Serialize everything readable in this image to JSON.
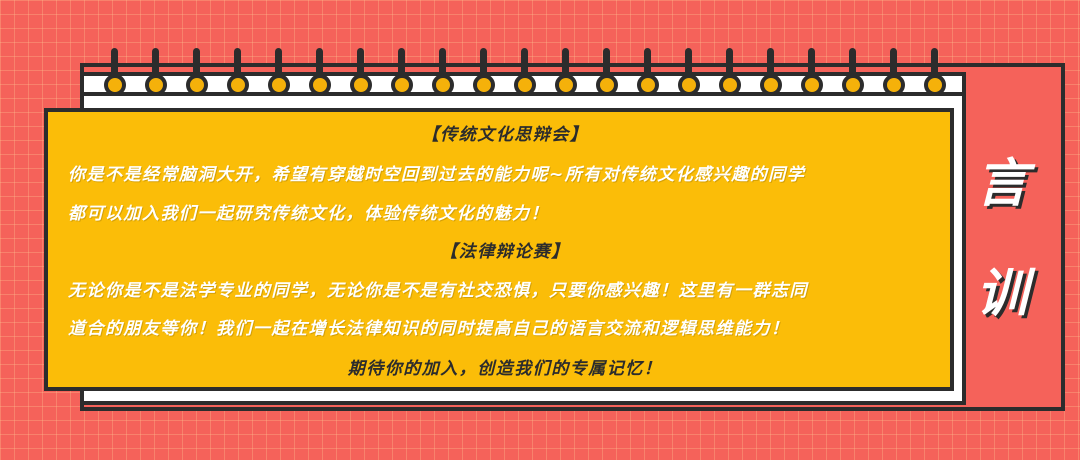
{
  "theme": {
    "background": "#f5625a",
    "accent": "#fbbd08",
    "ink": "#2c2c2c",
    "paper": "#ffffff"
  },
  "binder": {
    "ring_count": 21,
    "icon": "spiral-ring-icon"
  },
  "sections": [
    {
      "heading": "【传统文化思辩会】",
      "lines": [
        "你是不是经常脑洞大开，希望有穿越时空回到过去的能力呢~所有对传统文化感兴趣的同学",
        "都可以加入我们一起研究传统文化，体验传统文化的魅力！"
      ]
    },
    {
      "heading": "【法律辩论赛】",
      "lines": [
        "无论你是不是法学专业的同学，无论你是不是有社交恐惧，只要你感兴趣！这里有一群志同",
        "道合的朋友等你！我们一起在增长法律知识的同时提高自己的语言交流和逻辑思维能力！"
      ]
    }
  ],
  "closing": "期待你的加入，创造我们的专属记忆！",
  "side_title": [
    "言",
    "训"
  ]
}
